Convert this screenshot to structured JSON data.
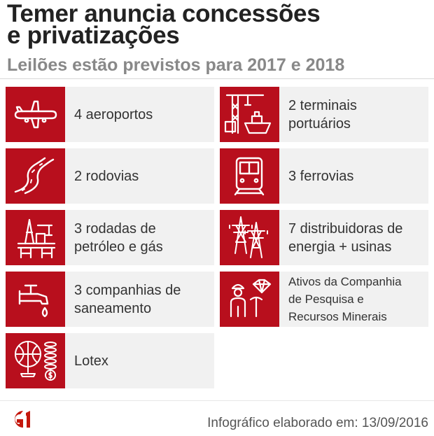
{
  "header": {
    "title_line1": "Temer anuncia concessões",
    "title_line2": "e privatizações",
    "subtitle": "Leilões estão previstos para 2017 e 2018"
  },
  "items": [
    {
      "icon": "airplane-icon",
      "lines": [
        "4 aeroportos"
      ]
    },
    {
      "icon": "port-crane-ship-icon",
      "lines": [
        "2 terminais",
        "portuários"
      ]
    },
    {
      "icon": "road-icon",
      "lines": [
        "2 rodovias"
      ]
    },
    {
      "icon": "train-icon",
      "lines": [
        "3 ferrovias"
      ]
    },
    {
      "icon": "oil-platform-icon",
      "lines": [
        "3 rodadas de",
        "petróleo e gás"
      ]
    },
    {
      "icon": "power-tower-icon",
      "lines": [
        "7 distribuidoras de",
        "energia + usinas"
      ]
    },
    {
      "icon": "water-faucet-icon",
      "lines": [
        "3 companhias de",
        "saneamento"
      ]
    },
    {
      "icon": "miner-diamond-icon",
      "lines": [
        "Ativos da Companhia",
        "de Pesquisa e",
        "Recursos Minerais"
      ]
    },
    {
      "icon": "lottery-globe-coins-icon",
      "lines": [
        "Lotex"
      ]
    }
  ],
  "footer": {
    "logo_text": "G1",
    "credit": "Infográfico elaborado em: 13/09/2016"
  },
  "colors": {
    "accent": "#b80f1d",
    "tile_bg": "#f1f1f1",
    "title": "#222222",
    "subtitle": "#888888"
  }
}
